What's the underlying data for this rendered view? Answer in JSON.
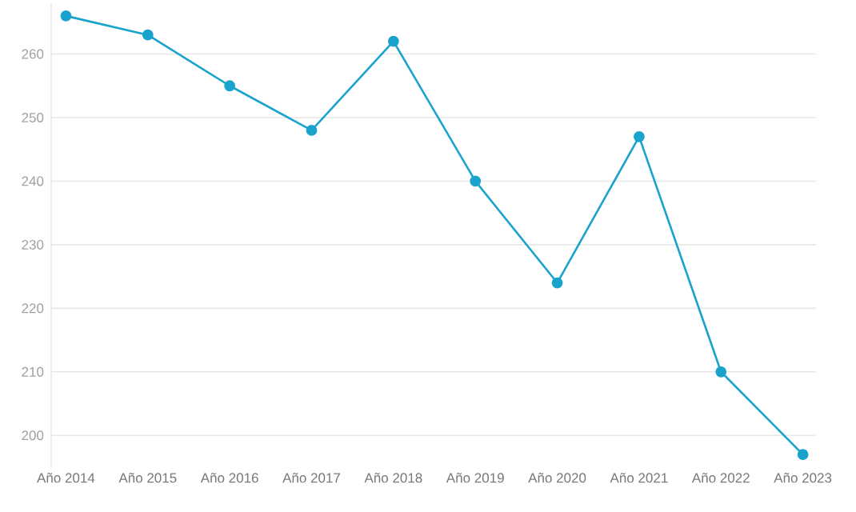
{
  "chart_data": {
    "type": "line",
    "categories": [
      "Año 2014",
      "Año 2015",
      "Año 2016",
      "Año 2017",
      "Año 2018",
      "Año 2019",
      "Año 2020",
      "Año 2021",
      "Año 2022",
      "Año 2023"
    ],
    "series": [
      {
        "color": "#1aa3cc",
        "values": [
          266,
          263,
          255,
          248,
          262,
          240,
          224,
          247,
          210,
          197
        ]
      }
    ],
    "ylim": [
      195,
      268
    ],
    "yticks": [
      200,
      210,
      220,
      230,
      240,
      250,
      260
    ],
    "grid": "y",
    "marker": "circle",
    "line_style": "solid"
  }
}
